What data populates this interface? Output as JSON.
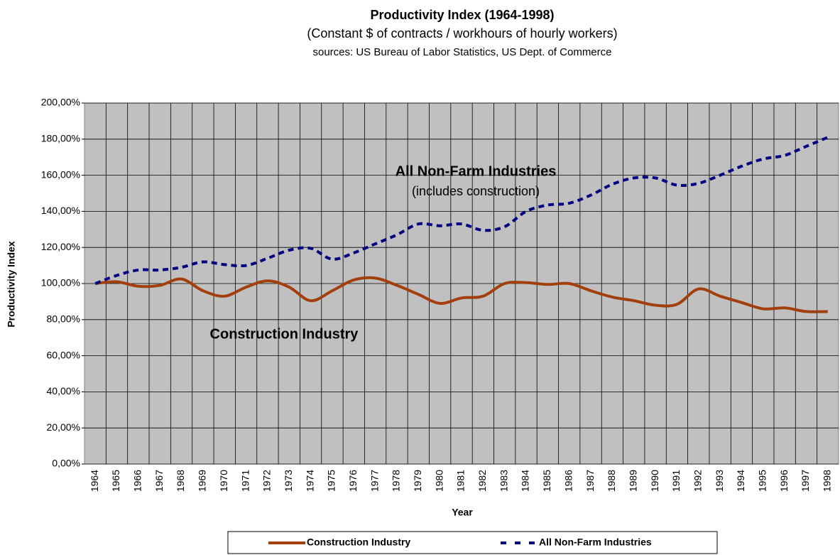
{
  "chart_data": {
    "type": "line",
    "title": "Productivity Index (1964-1998)",
    "subtitle": "(Constant $ of contracts / workhours of hourly workers)",
    "source": "sources: US Bureau of Labor Statistics, US Dept. of Commerce",
    "x_label": "Year",
    "y_label": "Productivity Index",
    "categories": [
      "1964",
      "1965",
      "1966",
      "1967",
      "1968",
      "1969",
      "1970",
      "1971",
      "1972",
      "1973",
      "1974",
      "1975",
      "1976",
      "1977",
      "1978",
      "1979",
      "1980",
      "1981",
      "1982",
      "1983",
      "1984",
      "1985",
      "1986",
      "1987",
      "1988",
      "1989",
      "1990",
      "1991",
      "1992",
      "1993",
      "1994",
      "1995",
      "1996",
      "1997",
      "1998"
    ],
    "series": [
      {
        "name": "Construction Industry",
        "color": "#a33f0d",
        "dash": false,
        "values": [
          100,
          101,
          98.5,
          99,
          102.5,
          96,
          93,
          98,
          101.5,
          98,
          90.5,
          96,
          102,
          103,
          99,
          94,
          89,
          92,
          93,
          100,
          100.5,
          99.5,
          100,
          96,
          92.5,
          90.5,
          88,
          88.5,
          97,
          93,
          89.5,
          86,
          86.5,
          84.5,
          84.5
        ]
      },
      {
        "name": "All Non-Farm Industries",
        "color": "#000080",
        "dash": true,
        "values": [
          100,
          104.5,
          107.5,
          107.5,
          109,
          112,
          110.5,
          110,
          114,
          118.5,
          119.5,
          113.5,
          117,
          122,
          127,
          133,
          132,
          133,
          129.5,
          131.5,
          140,
          143.5,
          144.5,
          149,
          155,
          158.5,
          158.5,
          154.5,
          155.5,
          160,
          165,
          169,
          171,
          176,
          181
        ]
      }
    ],
    "annotations": [
      {
        "text": "All Non-Farm Industries",
        "bold": true
      },
      {
        "text": "(includes construction)",
        "bold": false
      },
      {
        "text": "Construction Industry",
        "bold": true
      }
    ],
    "ylim": [
      0,
      200
    ],
    "yticks": [
      {
        "value": 0,
        "label": "0,00%"
      },
      {
        "value": 20,
        "label": "20,00%"
      },
      {
        "value": 40,
        "label": "40,00%"
      },
      {
        "value": 60,
        "label": "60,00%"
      },
      {
        "value": 80,
        "label": "80,00%"
      },
      {
        "value": 100,
        "label": "100,00%"
      },
      {
        "value": 120,
        "label": "120,00%"
      },
      {
        "value": 140,
        "label": "140,00%"
      },
      {
        "value": 160,
        "label": "160,00%"
      },
      {
        "value": 180,
        "label": "180,00%"
      },
      {
        "value": 200,
        "label": "200,00%"
      }
    ],
    "grid": true,
    "legend": "bottom",
    "background": "#c0c0c0"
  }
}
